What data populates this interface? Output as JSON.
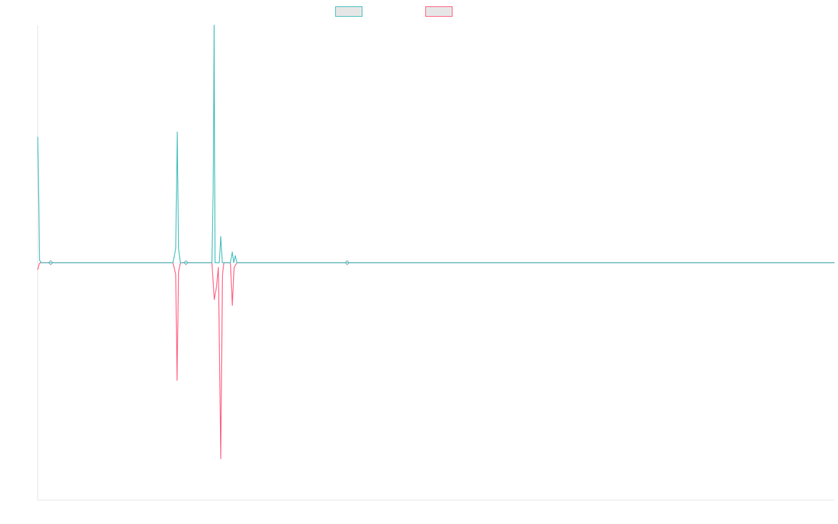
{
  "chart_data": {
    "type": "line",
    "title": "",
    "xlabel": "",
    "ylabel": "",
    "grid": false,
    "legend_position": "top-center",
    "ylim": [
      -1.0,
      1.0
    ],
    "xlim": [
      0,
      430
    ],
    "series": [
      {
        "name": "",
        "color": "#4bc0c0",
        "points": [
          [
            0,
            0.53
          ],
          [
            0.5,
            0.3
          ],
          [
            1,
            0.01
          ],
          [
            2,
            0.0
          ],
          [
            7,
            0.0
          ],
          [
            7.2,
            0.0
          ],
          [
            73,
            0.0
          ],
          [
            74.5,
            0.06
          ],
          [
            75.3,
            0.55
          ],
          [
            76,
            0.06
          ],
          [
            77,
            0.0
          ],
          [
            80,
            0.0
          ],
          [
            80.2,
            0.0
          ],
          [
            94,
            0.0
          ],
          [
            94.7,
            0.3
          ],
          [
            95.2,
            1.0
          ],
          [
            95.7,
            0.0
          ],
          [
            98,
            0.0
          ],
          [
            98.8,
            0.11
          ],
          [
            99.6,
            0.0
          ],
          [
            104,
            0.0
          ],
          [
            105,
            0.045
          ],
          [
            105.8,
            0.0
          ],
          [
            106.6,
            0.03
          ],
          [
            107.5,
            0.0
          ],
          [
            430,
            0.0
          ]
        ]
      },
      {
        "name": "",
        "color": "#ff6384",
        "points": [
          [
            0,
            -0.03
          ],
          [
            0.8,
            -0.005
          ],
          [
            1.5,
            0.0
          ],
          [
            73,
            0.0
          ],
          [
            74.5,
            -0.05
          ],
          [
            75.2,
            -0.495
          ],
          [
            76,
            -0.04
          ],
          [
            77,
            0.0
          ],
          [
            94,
            0.0
          ],
          [
            95.3,
            -0.155
          ],
          [
            96.5,
            -0.1
          ],
          [
            97.5,
            -0.02
          ],
          [
            98.8,
            -0.825
          ],
          [
            99.7,
            -0.05
          ],
          [
            100.5,
            0.0
          ],
          [
            104,
            0.0
          ],
          [
            105,
            -0.18
          ],
          [
            106,
            -0.02
          ],
          [
            107.5,
            0.0
          ],
          [
            430,
            0.0
          ]
        ],
        "markers": [
          [
            7,
            0.0
          ],
          [
            80,
            0.0
          ],
          [
            167,
            0.0
          ]
        ]
      }
    ]
  }
}
